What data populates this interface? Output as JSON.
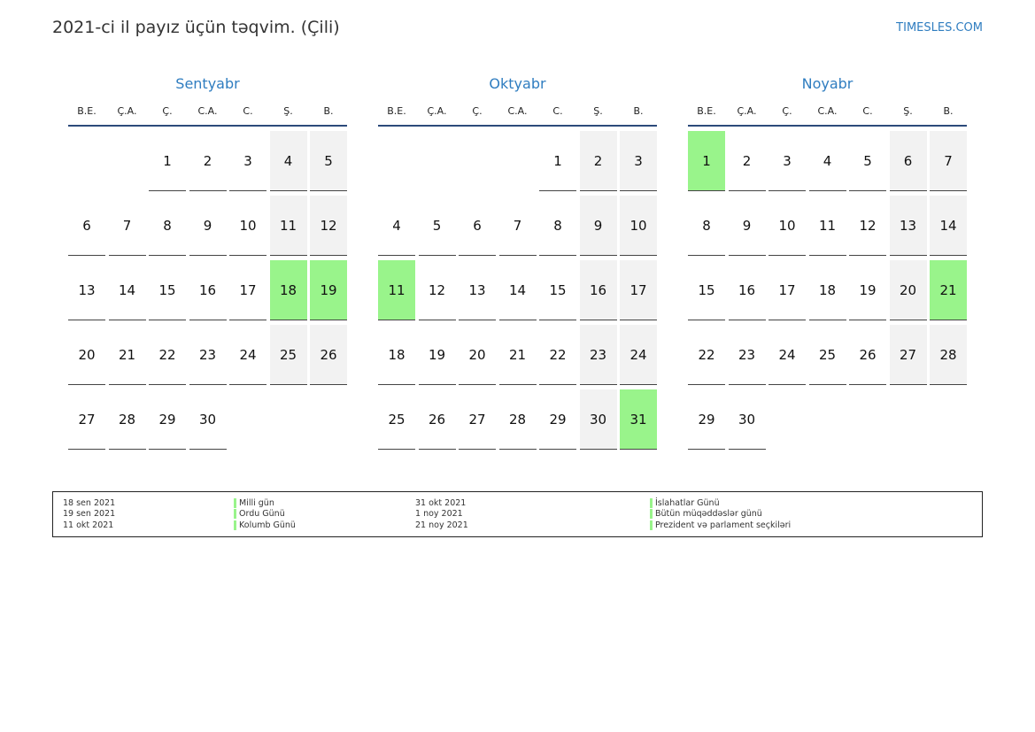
{
  "header": {
    "title": "2021-ci il payız üçün təqvim. (Çili)",
    "site": "TIMESLES.COM"
  },
  "weekdays": [
    "B.E.",
    "Ç.A.",
    "Ç.",
    "C.A.",
    "C.",
    "Ş.",
    "B."
  ],
  "colors": {
    "holiday": "#99f48b",
    "weekend": "#f2f2f2",
    "accent": "#2f7dc0"
  },
  "months": [
    {
      "name": "Sentyabr",
      "start_weekday": 2,
      "days": 30,
      "holidays": [
        18,
        19
      ]
    },
    {
      "name": "Oktyabr",
      "start_weekday": 4,
      "days": 31,
      "holidays": [
        11,
        31
      ]
    },
    {
      "name": "Noyabr",
      "start_weekday": 0,
      "days": 30,
      "holidays": [
        1,
        21
      ]
    }
  ],
  "legend": {
    "left": [
      {
        "date": "18 sen 2021",
        "name": "Milli gün"
      },
      {
        "date": "19 sen 2021",
        "name": "Ordu Günü"
      },
      {
        "date": "11 okt 2021",
        "name": "Kolumb Günü"
      }
    ],
    "right": [
      {
        "date": "31 okt 2021",
        "name": "İslahatlar Günü"
      },
      {
        "date": "1 noy 2021",
        "name": "Bütün müqəddəslər günü"
      },
      {
        "date": "21 noy 2021",
        "name": "Prezident və parlament seçkiləri"
      }
    ]
  }
}
